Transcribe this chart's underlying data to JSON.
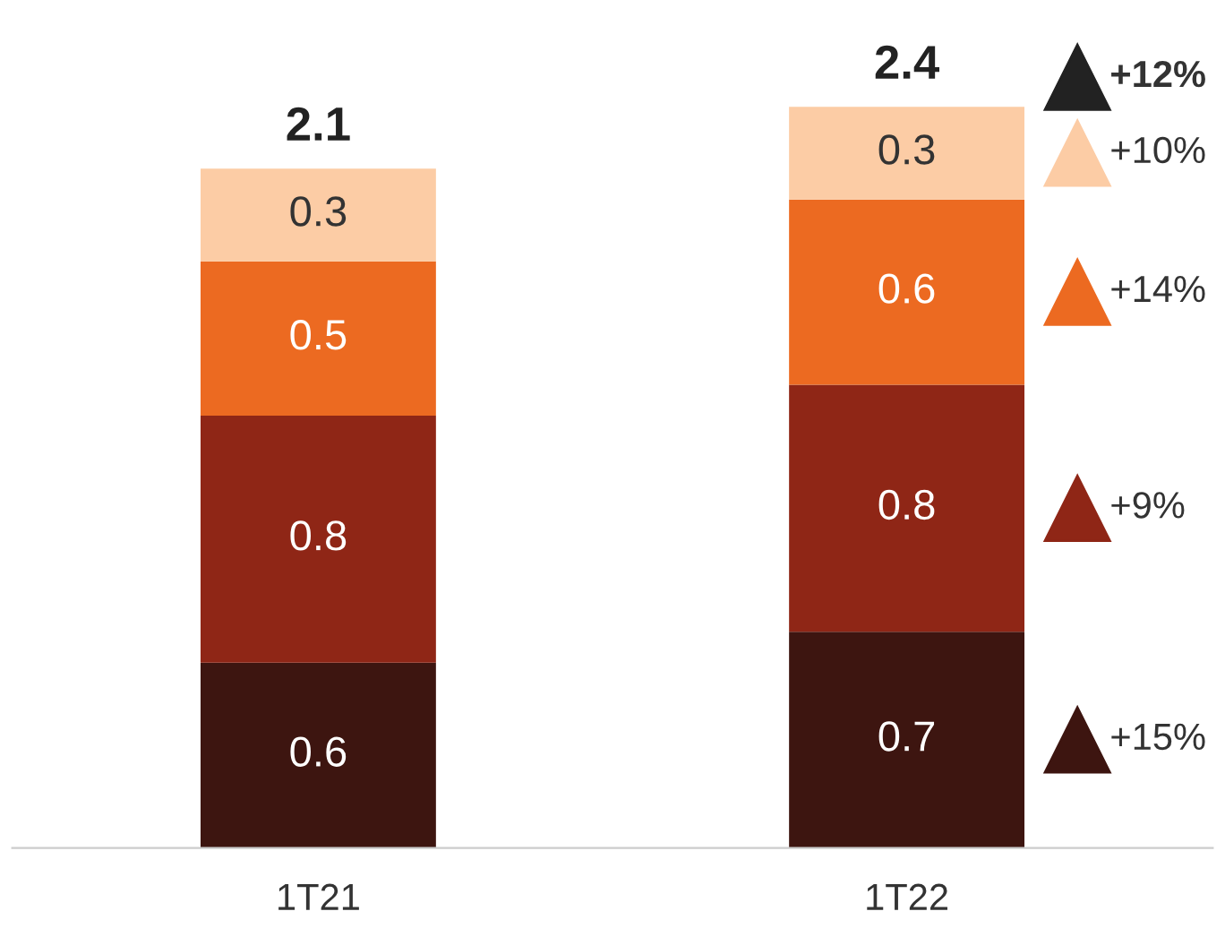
{
  "chart_data": {
    "type": "bar",
    "stacked": true,
    "categories": [
      "1T21",
      "1T22"
    ],
    "series": [
      {
        "color": "#3d1510",
        "values": [
          0.6,
          0.7
        ]
      },
      {
        "color": "#8f2616",
        "values": [
          0.8,
          0.8
        ]
      },
      {
        "color": "#ec6a21",
        "values": [
          0.5,
          0.6
        ]
      },
      {
        "color": "#fccca5",
        "values": [
          0.3,
          0.3
        ]
      }
    ],
    "data_labels": true,
    "totals": [
      "2.1",
      "2.4"
    ],
    "annotations": [
      "+15%",
      "+9%",
      "+14%",
      "+10%",
      "+12%"
    ],
    "grid": false,
    "legend": false,
    "tick_labels": "x"
  }
}
